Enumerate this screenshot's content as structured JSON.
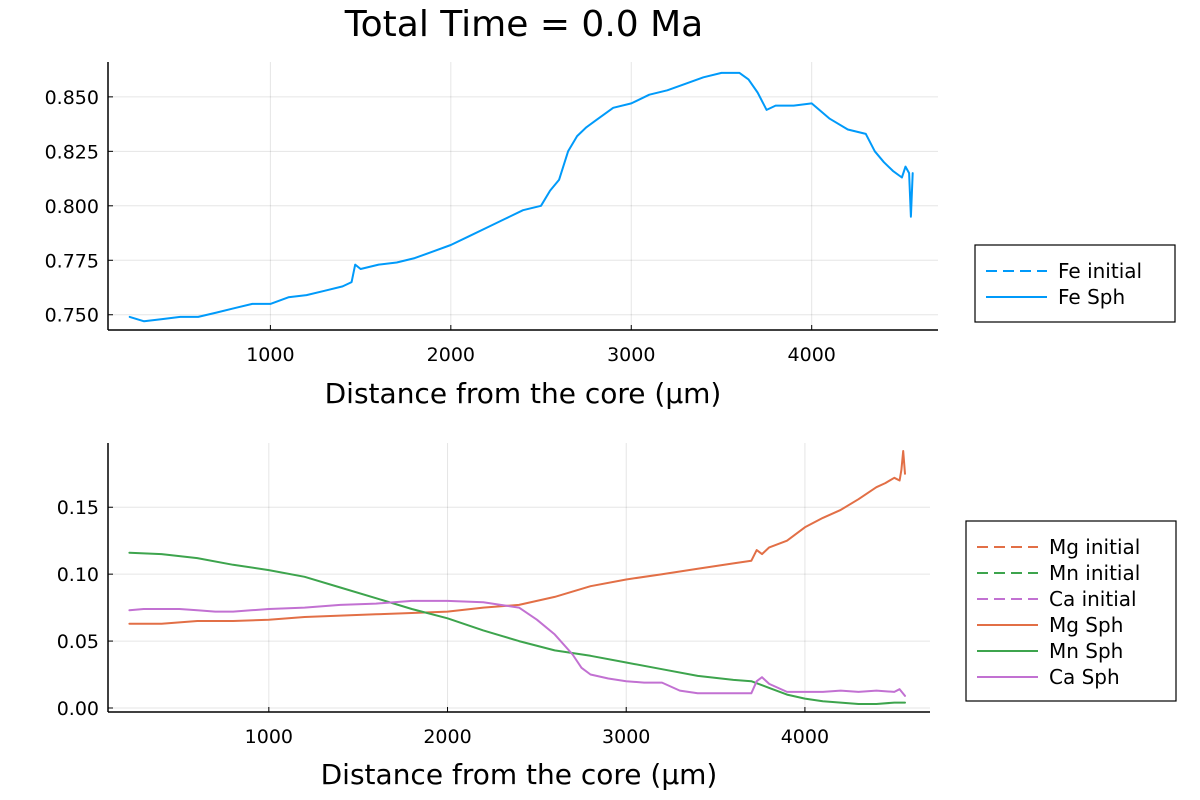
{
  "figure": {
    "title": "Total Time = 0.0 Ma"
  },
  "chart_data": [
    {
      "type": "line",
      "xlabel": "Distance from the core (μm)",
      "ylabel": "",
      "xlim": [
        100,
        4700
      ],
      "ylim": [
        0.743,
        0.866
      ],
      "xticks": [
        1000,
        2000,
        3000,
        4000
      ],
      "yticks": [
        0.75,
        0.775,
        0.8,
        0.825,
        0.85
      ],
      "xtick_labels": [
        "1000",
        "2000",
        "3000",
        "4000"
      ],
      "ytick_labels": [
        "0.750",
        "0.775",
        "0.800",
        "0.825",
        "0.850"
      ],
      "grid": true,
      "legend": "right",
      "series": [
        {
          "name": "Fe initial",
          "style": "dashed",
          "color": "#009AFA",
          "x": [
            220,
            4560
          ],
          "y": [
            0.748,
            0.815
          ]
        },
        {
          "name": "Fe Sph",
          "style": "solid",
          "color": "#009AFA",
          "x": [
            220,
            300,
            400,
            500,
            600,
            700,
            800,
            900,
            1000,
            1100,
            1200,
            1300,
            1400,
            1450,
            1470,
            1500,
            1600,
            1700,
            1800,
            1900,
            2000,
            2100,
            2200,
            2300,
            2400,
            2500,
            2550,
            2600,
            2650,
            2700,
            2750,
            2800,
            2900,
            3000,
            3100,
            3200,
            3300,
            3400,
            3500,
            3600,
            3650,
            3700,
            3750,
            3800,
            3900,
            4000,
            4100,
            4200,
            4300,
            4350,
            4400,
            4450,
            4500,
            4520,
            4540,
            4550,
            4560
          ],
          "y": [
            0.749,
            0.747,
            0.748,
            0.749,
            0.749,
            0.751,
            0.753,
            0.755,
            0.755,
            0.758,
            0.759,
            0.761,
            0.763,
            0.765,
            0.773,
            0.771,
            0.773,
            0.774,
            0.776,
            0.779,
            0.782,
            0.786,
            0.79,
            0.794,
            0.798,
            0.8,
            0.807,
            0.812,
            0.825,
            0.832,
            0.836,
            0.839,
            0.845,
            0.847,
            0.851,
            0.853,
            0.856,
            0.859,
            0.861,
            0.861,
            0.858,
            0.852,
            0.844,
            0.846,
            0.846,
            0.847,
            0.84,
            0.835,
            0.833,
            0.825,
            0.82,
            0.816,
            0.813,
            0.818,
            0.815,
            0.795,
            0.815
          ]
        }
      ]
    },
    {
      "type": "line",
      "xlabel": "Distance from the core (μm)",
      "ylabel": "",
      "xlim": [
        100,
        4700
      ],
      "ylim": [
        -0.003,
        0.198
      ],
      "xticks": [
        1000,
        2000,
        3000,
        4000
      ],
      "yticks": [
        0.0,
        0.05,
        0.1,
        0.15
      ],
      "xtick_labels": [
        "1000",
        "2000",
        "3000",
        "4000"
      ],
      "ytick_labels": [
        "0.00",
        "0.05",
        "0.10",
        "0.15"
      ],
      "grid": true,
      "legend": "right",
      "series": [
        {
          "name": "Mg initial",
          "style": "dashed",
          "color": "#E26F46",
          "x": [
            220,
            4560
          ],
          "y": [
            0.063,
            0.175
          ]
        },
        {
          "name": "Mn initial",
          "style": "dashed",
          "color": "#3DA44D",
          "x": [
            220,
            4560
          ],
          "y": [
            0.116,
            0.004
          ]
        },
        {
          "name": "Ca initial",
          "style": "dashed",
          "color": "#C271D2",
          "x": [
            220,
            4560
          ],
          "y": [
            0.073,
            0.01
          ]
        },
        {
          "name": "Mg Sph",
          "style": "solid",
          "color": "#E26F46",
          "x": [
            220,
            400,
            600,
            800,
            1000,
            1200,
            1400,
            1600,
            1800,
            2000,
            2200,
            2400,
            2600,
            2700,
            2800,
            3000,
            3200,
            3400,
            3600,
            3700,
            3730,
            3760,
            3800,
            3900,
            4000,
            4100,
            4200,
            4300,
            4400,
            4450,
            4500,
            4530,
            4540,
            4550,
            4560
          ],
          "y": [
            0.063,
            0.063,
            0.065,
            0.065,
            0.066,
            0.068,
            0.069,
            0.07,
            0.071,
            0.072,
            0.075,
            0.077,
            0.083,
            0.087,
            0.091,
            0.096,
            0.1,
            0.104,
            0.108,
            0.11,
            0.118,
            0.115,
            0.12,
            0.125,
            0.135,
            0.142,
            0.148,
            0.156,
            0.165,
            0.168,
            0.172,
            0.17,
            0.178,
            0.192,
            0.175
          ]
        },
        {
          "name": "Mn Sph",
          "style": "solid",
          "color": "#3DA44D",
          "x": [
            220,
            400,
            600,
            800,
            1000,
            1200,
            1400,
            1600,
            1800,
            2000,
            2200,
            2400,
            2600,
            2800,
            3000,
            3200,
            3400,
            3600,
            3700,
            3800,
            3900,
            4000,
            4100,
            4200,
            4300,
            4400,
            4500,
            4560
          ],
          "y": [
            0.116,
            0.115,
            0.112,
            0.107,
            0.103,
            0.098,
            0.09,
            0.082,
            0.074,
            0.067,
            0.058,
            0.05,
            0.043,
            0.039,
            0.034,
            0.029,
            0.024,
            0.021,
            0.02,
            0.015,
            0.01,
            0.007,
            0.005,
            0.004,
            0.003,
            0.003,
            0.004,
            0.004
          ]
        },
        {
          "name": "Ca Sph",
          "style": "solid",
          "color": "#C271D2",
          "x": [
            220,
            300,
            400,
            500,
            600,
            700,
            800,
            900,
            1000,
            1200,
            1400,
            1600,
            1800,
            2000,
            2200,
            2400,
            2500,
            2600,
            2700,
            2750,
            2800,
            2900,
            3000,
            3100,
            3200,
            3300,
            3400,
            3500,
            3600,
            3700,
            3730,
            3760,
            3800,
            3900,
            4000,
            4100,
            4200,
            4300,
            4400,
            4500,
            4530,
            4560
          ],
          "y": [
            0.073,
            0.074,
            0.074,
            0.074,
            0.073,
            0.072,
            0.072,
            0.073,
            0.074,
            0.075,
            0.077,
            0.078,
            0.08,
            0.08,
            0.079,
            0.075,
            0.066,
            0.055,
            0.04,
            0.03,
            0.025,
            0.022,
            0.02,
            0.019,
            0.019,
            0.013,
            0.011,
            0.011,
            0.011,
            0.011,
            0.02,
            0.023,
            0.018,
            0.012,
            0.012,
            0.012,
            0.013,
            0.012,
            0.013,
            0.012,
            0.014,
            0.009
          ]
        }
      ]
    }
  ]
}
